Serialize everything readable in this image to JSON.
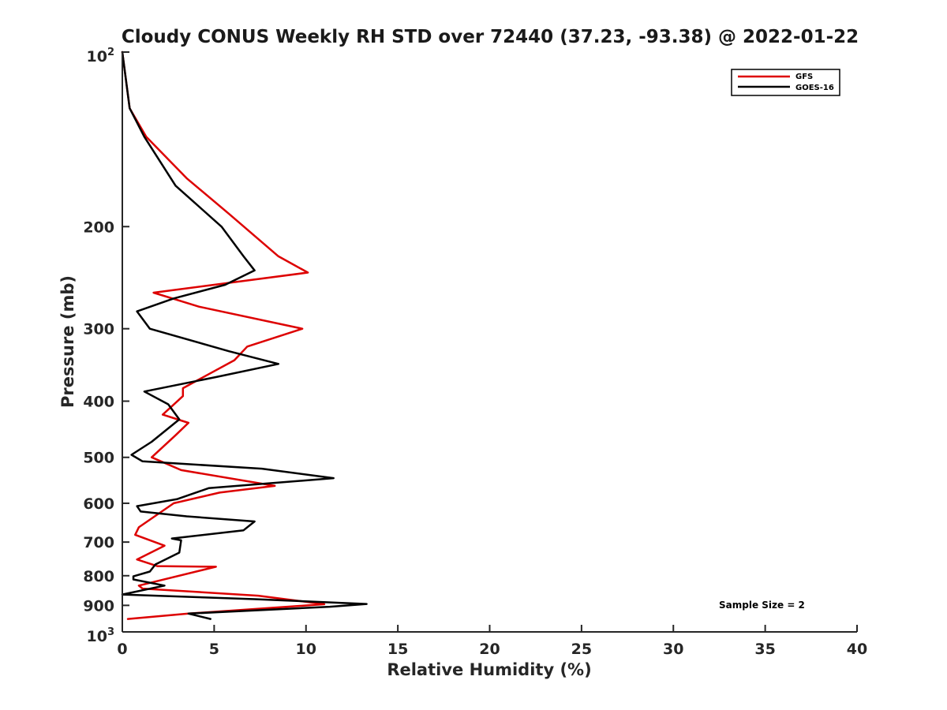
{
  "chart_data": {
    "type": "line",
    "title": "Cloudy CONUS Weekly RH STD over 72440 (37.23, -93.38) @ 2022-01-22",
    "xlabel": "Relative Humidity (%)",
    "ylabel": "Pressure (mb)",
    "xlim": [
      0,
      40
    ],
    "ylim": [
      100,
      1000
    ],
    "yscale": "log",
    "y_reversed": true,
    "grid": false,
    "legend_placement": "top-right",
    "x_ticks": [
      "0",
      "5",
      "10",
      "15",
      "20",
      "25",
      "30",
      "35",
      "40"
    ],
    "y_ticks": [
      {
        "value": 100,
        "base": "10",
        "exp": "2"
      },
      {
        "value": 200,
        "label": "200"
      },
      {
        "value": 300,
        "label": "300"
      },
      {
        "value": 400,
        "label": "400"
      },
      {
        "value": 500,
        "label": "500"
      },
      {
        "value": 600,
        "label": "600"
      },
      {
        "value": 700,
        "label": "700"
      },
      {
        "value": 800,
        "label": "800"
      },
      {
        "value": 900,
        "label": "900"
      },
      {
        "value": 1000,
        "base": "10",
        "exp": "3"
      }
    ],
    "annotation": "Sample Size = 2",
    "series": [
      {
        "name": "GFS",
        "color": "#dd0000",
        "points": [
          [
            0.0,
            100
          ],
          [
            0.4,
            125
          ],
          [
            1.3,
            140
          ],
          [
            3.5,
            165
          ],
          [
            5.8,
            190
          ],
          [
            8.5,
            225
          ],
          [
            10.1,
            240
          ],
          [
            1.7,
            260
          ],
          [
            4.2,
            275
          ],
          [
            9.8,
            300
          ],
          [
            6.8,
            322
          ],
          [
            6.1,
            340
          ],
          [
            3.3,
            380
          ],
          [
            3.3,
            392
          ],
          [
            2.2,
            422
          ],
          [
            3.6,
            436
          ],
          [
            2.9,
            458
          ],
          [
            1.6,
            500
          ],
          [
            3.2,
            526
          ],
          [
            8.3,
            560
          ],
          [
            5.3,
            575
          ],
          [
            2.8,
            600
          ],
          [
            0.9,
            660
          ],
          [
            0.7,
            680
          ],
          [
            2.3,
            710
          ],
          [
            0.8,
            750
          ],
          [
            1.9,
            770
          ],
          [
            5.1,
            772
          ],
          [
            0.9,
            832
          ],
          [
            1.1,
            842
          ],
          [
            7.4,
            866
          ],
          [
            11.0,
            896
          ],
          [
            3.6,
            930
          ],
          [
            0.3,
            950
          ]
        ]
      },
      {
        "name": "GOES-16",
        "color": "#000000",
        "points": [
          [
            0.0,
            100
          ],
          [
            0.4,
            125
          ],
          [
            1.2,
            140
          ],
          [
            2.9,
            170
          ],
          [
            5.4,
            200
          ],
          [
            6.6,
            225
          ],
          [
            7.2,
            238
          ],
          [
            5.6,
            252
          ],
          [
            2.8,
            266
          ],
          [
            0.8,
            280
          ],
          [
            1.5,
            300
          ],
          [
            5.8,
            328
          ],
          [
            8.5,
            345
          ],
          [
            5.2,
            363
          ],
          [
            1.2,
            385
          ],
          [
            2.5,
            405
          ],
          [
            3.1,
            430
          ],
          [
            1.6,
            470
          ],
          [
            0.5,
            495
          ],
          [
            1.1,
            508
          ],
          [
            7.6,
            523
          ],
          [
            11.5,
            543
          ],
          [
            4.7,
            565
          ],
          [
            3.0,
            590
          ],
          [
            0.8,
            607
          ],
          [
            1.0,
            620
          ],
          [
            3.5,
            632
          ],
          [
            7.2,
            645
          ],
          [
            6.6,
            668
          ],
          [
            2.7,
            690
          ],
          [
            3.2,
            695
          ],
          [
            3.1,
            730
          ],
          [
            1.8,
            765
          ],
          [
            1.5,
            787
          ],
          [
            0.6,
            802
          ],
          [
            0.6,
            812
          ],
          [
            2.3,
            832
          ],
          [
            0.0,
            862
          ],
          [
            7.2,
            878
          ],
          [
            13.3,
            895
          ],
          [
            11.3,
            905
          ],
          [
            3.6,
            930
          ],
          [
            4.8,
            950
          ]
        ]
      }
    ]
  }
}
